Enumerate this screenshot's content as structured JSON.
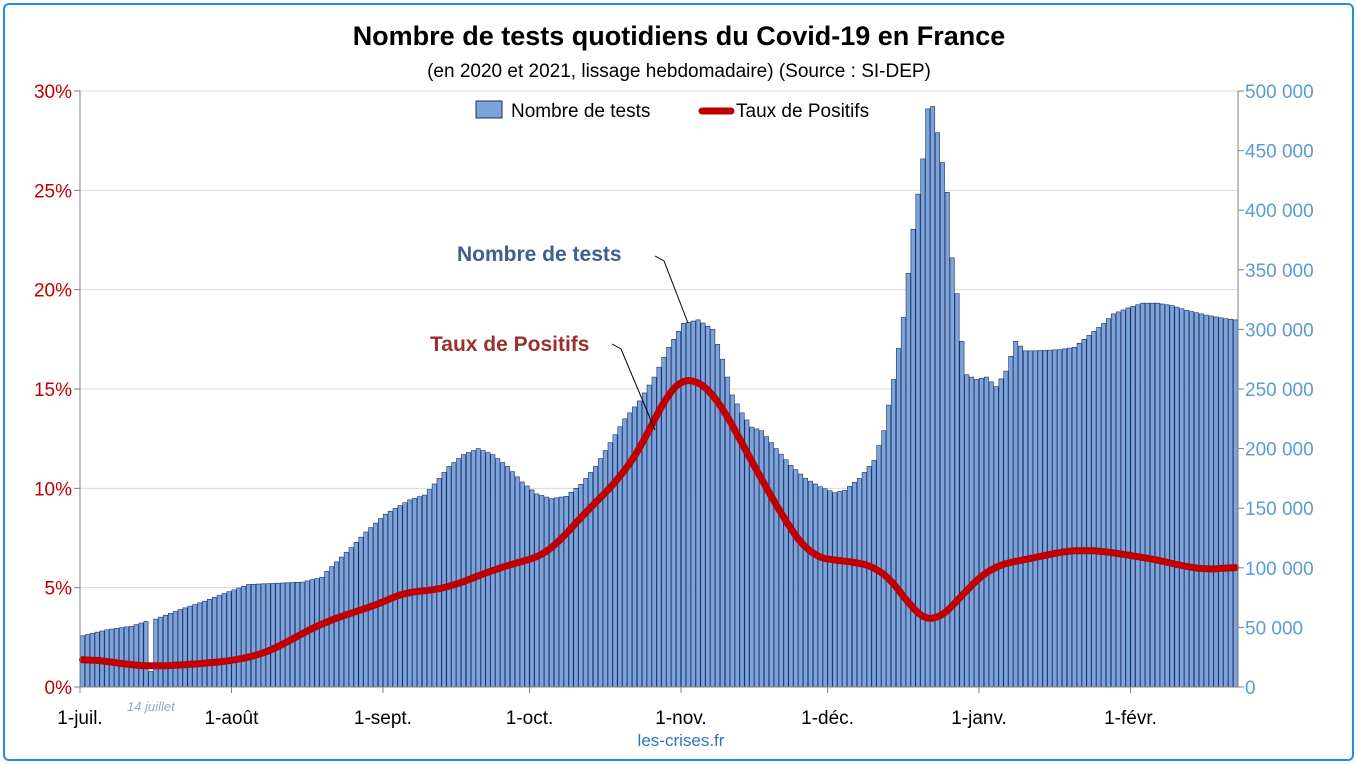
{
  "chart_data": {
    "type": "bar",
    "title": "Nombre de tests quotidiens du Covid-19 en France",
    "subtitle": "(en 2020 et 2021, lissage hebdomadaire) (Source : SI-DEP)",
    "source_note": "les-crises.fr",
    "legend": {
      "placement": "top-center",
      "bars_label": "Nombre de tests",
      "line_label": "Taux de Positifs"
    },
    "colors": {
      "bars": "#7da3db",
      "bar_border": "#1a2f66",
      "line": "#c00000",
      "left_axis": "#c00000",
      "right_axis": "#5b9bd5",
      "tests_annotation": "#3b5f8f",
      "positifs_annotation": "#9b2f2f",
      "frame": "#1f8fd6"
    },
    "x_ticks": [
      "1-juil.",
      "1-août",
      "1-sept.",
      "1-oct.",
      "1-nov.",
      "1-déc.",
      "1-janv.",
      "1-févr."
    ],
    "x_tick_days": [
      0,
      31,
      62,
      92,
      123,
      153,
      184,
      215
    ],
    "x_range_days": [
      0,
      237
    ],
    "y_left": {
      "ticks": [
        "0%",
        "5%",
        "10%",
        "15%",
        "20%",
        "25%",
        "30%"
      ],
      "range": [
        0,
        30
      ],
      "unit": "%"
    },
    "y_right": {
      "ticks": [
        "0",
        "50 000",
        "100 000",
        "150 000",
        "200 000",
        "250 000",
        "300 000",
        "350 000",
        "400 000",
        "450 000",
        "500 000"
      ],
      "range": [
        0,
        500000
      ]
    },
    "grid": true,
    "annotations": {
      "holiday": "14 juillet",
      "tests": "Nombre de tests",
      "positifs": "Taux de Positifs"
    },
    "tests_series": {
      "name": "Nombre de tests",
      "keypoints": [
        [
          0,
          43000
        ],
        [
          5,
          48000
        ],
        [
          10,
          51000
        ],
        [
          13,
          55000
        ],
        [
          14,
          13000
        ],
        [
          15,
          57000
        ],
        [
          20,
          65000
        ],
        [
          25,
          72000
        ],
        [
          30,
          80000
        ],
        [
          34,
          86000
        ],
        [
          45,
          88000
        ],
        [
          49,
          92000
        ],
        [
          50,
          97000
        ],
        [
          55,
          117000
        ],
        [
          58,
          130000
        ],
        [
          62,
          145000
        ],
        [
          67,
          157000
        ],
        [
          70,
          161000
        ],
        [
          73,
          175000
        ],
        [
          75,
          185000
        ],
        [
          78,
          195000
        ],
        [
          81,
          200000
        ],
        [
          84,
          195000
        ],
        [
          87,
          185000
        ],
        [
          90,
          172000
        ],
        [
          93,
          162000
        ],
        [
          96,
          158000
        ],
        [
          99,
          160000
        ],
        [
          102,
          170000
        ],
        [
          105,
          185000
        ],
        [
          108,
          205000
        ],
        [
          111,
          225000
        ],
        [
          114,
          240000
        ],
        [
          117,
          260000
        ],
        [
          120,
          285000
        ],
        [
          123,
          305000
        ],
        [
          126,
          308000
        ],
        [
          129,
          300000
        ],
        [
          131,
          275000
        ],
        [
          133,
          245000
        ],
        [
          135,
          230000
        ],
        [
          137,
          218000
        ],
        [
          139,
          215000
        ],
        [
          142,
          200000
        ],
        [
          145,
          186000
        ],
        [
          148,
          175000
        ],
        [
          151,
          168000
        ],
        [
          154,
          163000
        ],
        [
          156,
          165000
        ],
        [
          159,
          175000
        ],
        [
          162,
          190000
        ],
        [
          164,
          215000
        ],
        [
          166,
          258000
        ],
        [
          168,
          310000
        ],
        [
          170,
          384000
        ],
        [
          172,
          443000
        ],
        [
          173,
          485000
        ],
        [
          174,
          487000
        ],
        [
          175,
          465000
        ],
        [
          177,
          415000
        ],
        [
          178,
          360000
        ],
        [
          179,
          330000
        ],
        [
          180,
          290000
        ],
        [
          181,
          262000
        ],
        [
          183,
          258000
        ],
        [
          185,
          260000
        ],
        [
          187,
          252000
        ],
        [
          189,
          265000
        ],
        [
          191,
          290000
        ],
        [
          193,
          282000
        ],
        [
          195,
          282000
        ],
        [
          200,
          283000
        ],
        [
          203,
          285000
        ],
        [
          206,
          295000
        ],
        [
          209,
          305000
        ],
        [
          211,
          313000
        ],
        [
          214,
          318000
        ],
        [
          217,
          322000
        ],
        [
          220,
          322000
        ],
        [
          223,
          320000
        ],
        [
          226,
          316000
        ],
        [
          230,
          312000
        ],
        [
          234,
          309000
        ],
        [
          236,
          308000
        ]
      ]
    },
    "positifs_series": {
      "name": "Taux de Positifs",
      "keypoints": [
        [
          0,
          1.4
        ],
        [
          5,
          1.3
        ],
        [
          10,
          1.1
        ],
        [
          15,
          1.05
        ],
        [
          20,
          1.1
        ],
        [
          25,
          1.2
        ],
        [
          30,
          1.3
        ],
        [
          36,
          1.6
        ],
        [
          40,
          2.0
        ],
        [
          45,
          2.7
        ],
        [
          50,
          3.3
        ],
        [
          56,
          3.8
        ],
        [
          61,
          4.2
        ],
        [
          66,
          4.8
        ],
        [
          70,
          4.8
        ],
        [
          76,
          5.1
        ],
        [
          82,
          5.7
        ],
        [
          88,
          6.2
        ],
        [
          93,
          6.5
        ],
        [
          96,
          6.9
        ],
        [
          100,
          8.0
        ],
        [
          105,
          9.3
        ],
        [
          110,
          10.5
        ],
        [
          113,
          11.6
        ],
        [
          116,
          12.8
        ],
        [
          119,
          14.5
        ],
        [
          121,
          15.3
        ],
        [
          124,
          15.6
        ],
        [
          127,
          15.3
        ],
        [
          130,
          14.5
        ],
        [
          133,
          13.2
        ],
        [
          136,
          11.8
        ],
        [
          140,
          10.0
        ],
        [
          145,
          7.9
        ],
        [
          149,
          6.6
        ],
        [
          153,
          6.4
        ],
        [
          158,
          6.3
        ],
        [
          163,
          6.0
        ],
        [
          167,
          5.0
        ],
        [
          171,
          3.5
        ],
        [
          174,
          3.2
        ],
        [
          178,
          4.0
        ],
        [
          182,
          5.2
        ],
        [
          186,
          6.0
        ],
        [
          190,
          6.3
        ],
        [
          195,
          6.5
        ],
        [
          200,
          6.8
        ],
        [
          205,
          6.9
        ],
        [
          210,
          6.8
        ],
        [
          215,
          6.6
        ],
        [
          220,
          6.4
        ],
        [
          225,
          6.1
        ],
        [
          230,
          5.9
        ],
        [
          235,
          6.0
        ],
        [
          236,
          6.1
        ]
      ]
    }
  }
}
